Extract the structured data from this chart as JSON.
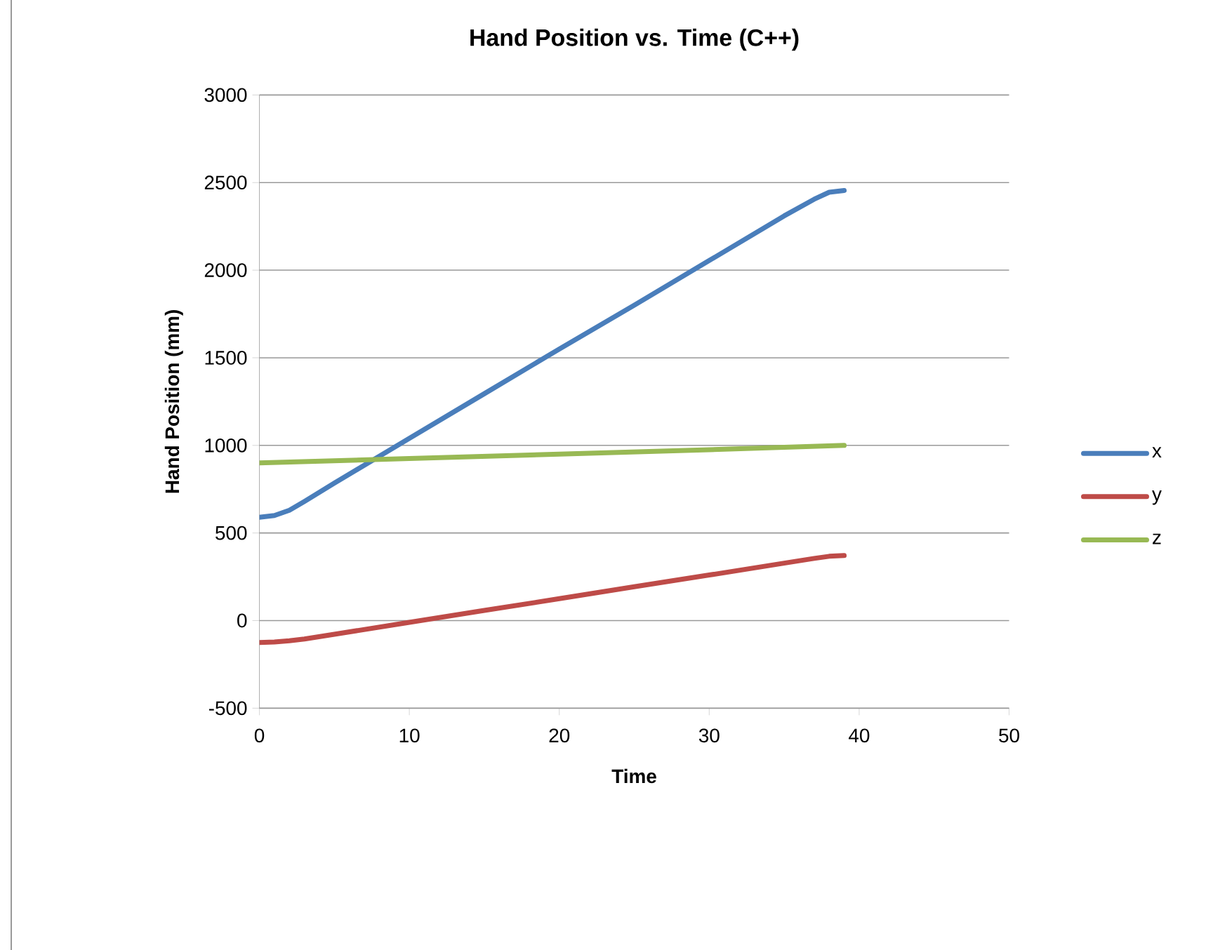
{
  "chart_data": {
    "type": "line",
    "title": "Hand Position vs. Time (C++)",
    "xlabel": "Time",
    "ylabel": "Hand Position  (mm)",
    "xlim": [
      0,
      50
    ],
    "xticks": [
      0,
      10,
      20,
      30,
      40,
      50
    ],
    "ylim": [
      -500,
      3000
    ],
    "yticks": [
      -500,
      0,
      500,
      1000,
      1500,
      2000,
      2500,
      3000
    ],
    "grid": "y",
    "legend": "right",
    "marker": "none",
    "line_style": "solid",
    "series": [
      {
        "name": "x",
        "color": "#4a7ebb",
        "x": [
          0,
          1,
          2,
          3,
          5,
          10,
          15,
          20,
          25,
          30,
          35,
          37,
          38,
          39
        ],
        "values": [
          590,
          600,
          630,
          680,
          785,
          1040,
          1295,
          1550,
          1800,
          2055,
          2310,
          2405,
          2445,
          2455
        ]
      },
      {
        "name": "y",
        "color": "#be4b48",
        "x": [
          0,
          1,
          2,
          3,
          5,
          10,
          15,
          20,
          25,
          30,
          35,
          37,
          38,
          39
        ],
        "values": [
          -125,
          -122,
          -115,
          -105,
          -78,
          -10,
          58,
          125,
          193,
          260,
          328,
          355,
          367,
          371
        ]
      },
      {
        "name": "z",
        "color": "#98b954",
        "x": [
          0,
          10,
          20,
          30,
          39
        ],
        "values": [
          900,
          925,
          950,
          975,
          1000
        ]
      }
    ]
  }
}
